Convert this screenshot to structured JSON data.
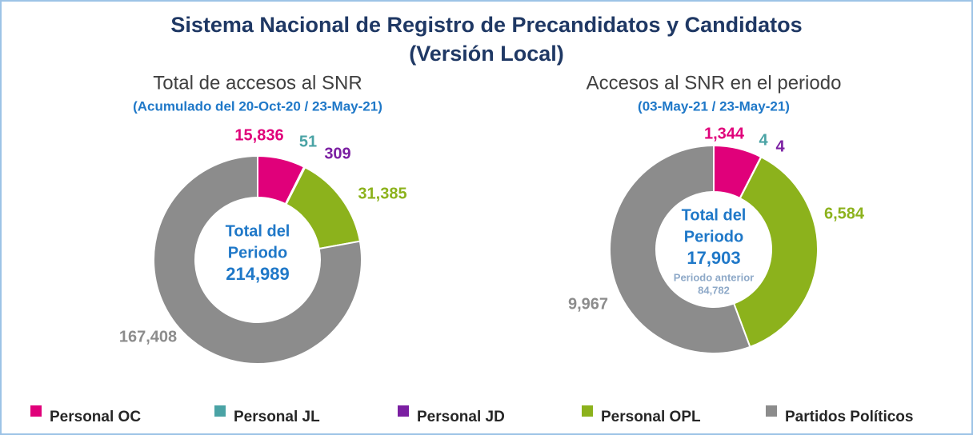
{
  "title_lines": [
    "Sistema Nacional de Registro de Precandidatos y Candidatos",
    "(Versión Local)"
  ],
  "legend": {
    "categories": [
      "Personal OC",
      "Personal JL",
      "Personal JD",
      "Personal OPL",
      "Partidos Políticos"
    ],
    "colors": [
      "#e0007a",
      "#4aa3a5",
      "#7b1fa2",
      "#8cb21c",
      "#8c8c8c"
    ]
  },
  "chart_data": [
    {
      "type": "pie",
      "title": "Total de accesos al SNR",
      "subtitle": "(Acumulado del 20-Oct-20 / 23-May-21)",
      "values": [
        15836,
        51,
        309,
        31385,
        167408
      ],
      "value_labels": [
        "15,836",
        "51",
        "309",
        "31,385",
        "167,408"
      ],
      "center_lines": [
        "Total del",
        "Periodo"
      ],
      "total": 214989,
      "total_label": "214,989"
    },
    {
      "type": "pie",
      "title": "Accesos al SNR en el periodo",
      "subtitle": "(03-May-21 / 23-May-21)",
      "values": [
        1344,
        4,
        4,
        6584,
        9967
      ],
      "value_labels": [
        "1,344",
        "4",
        "4",
        "6,584",
        "9,967"
      ],
      "center_lines": [
        "Total del",
        "Periodo"
      ],
      "total": 17903,
      "total_label": "17,903",
      "previous_title": "Periodo anterior",
      "previous": 84782,
      "previous_label": "84,782"
    }
  ]
}
